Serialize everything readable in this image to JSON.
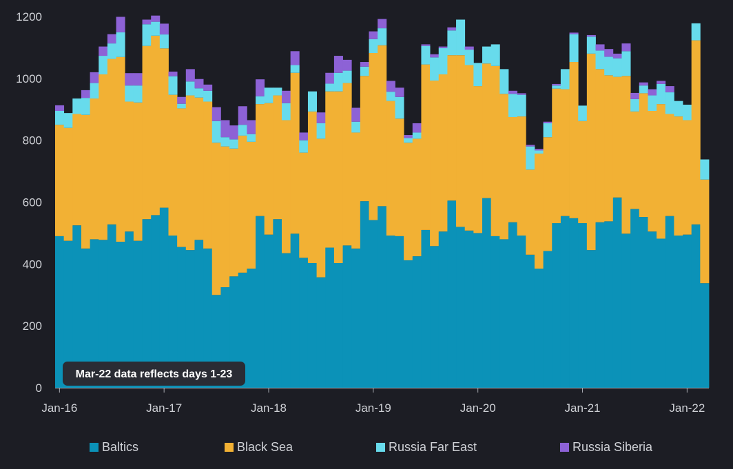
{
  "chart_data": {
    "type": "bar",
    "stacked": true,
    "title": "",
    "xlabel": "",
    "ylabel": "",
    "ylim": [
      0,
      1200
    ],
    "yticks": [
      0,
      200,
      400,
      600,
      800,
      1000,
      1200
    ],
    "xtick_labels": [
      "Jan-16",
      "Jan-17",
      "Jan-18",
      "Jan-19",
      "Jan-20",
      "Jan-21",
      "Jan-22"
    ],
    "xtick_indices": [
      0,
      12,
      24,
      36,
      48,
      60,
      72
    ],
    "categories_range": "Jan-16 to Mar-22 (monthly)",
    "legend_position": "bottom",
    "annotation": "Mar-22 data reflects days 1-23",
    "colors": {
      "Baltics": "#0b92b8",
      "Black Sea": "#f2b134",
      "Russia Far East": "#67dbec",
      "Russia Siberia": "#8d62d6"
    },
    "series": [
      {
        "name": "Baltics",
        "values": [
          490,
          475,
          525,
          450,
          480,
          478,
          528,
          472,
          505,
          475,
          545,
          558,
          582,
          492,
          455,
          445,
          478,
          450,
          300,
          325,
          360,
          372,
          385,
          555,
          495,
          545,
          435,
          498,
          420,
          403,
          357,
          453,
          403,
          460,
          450,
          603,
          542,
          587,
          492,
          490,
          412,
          425,
          510,
          458,
          505,
          605,
          520,
          508,
          500,
          613,
          490,
          480,
          535,
          492,
          430,
          385,
          442,
          532,
          555,
          548,
          532,
          445,
          535,
          538,
          615,
          498,
          578,
          552,
          505,
          482,
          555,
          492,
          495,
          528,
          338
        ]
      },
      {
        "name": "Black Sea",
        "values": [
          360,
          365,
          360,
          432,
          455,
          535,
          535,
          597,
          420,
          447,
          560,
          580,
          515,
          455,
          448,
          500,
          460,
          475,
          492,
          455,
          413,
          443,
          410,
          362,
          425,
          400,
          430,
          520,
          340,
          490,
          448,
          505,
          555,
          525,
          375,
          405,
          540,
          520,
          435,
          380,
          380,
          380,
          535,
          535,
          508,
          470,
          555,
          535,
          475,
          435,
          550,
          470,
          340,
          385,
          275,
          372,
          368,
          435,
          410,
          505,
          330,
          635,
          495,
          472,
          390,
          510,
          315,
          400,
          390,
          435,
          330,
          385,
          370,
          595,
          335
        ]
      },
      {
        "name": "Russia Far East",
        "values": [
          45,
          48,
          50,
          55,
          50,
          60,
          50,
          80,
          52,
          55,
          70,
          45,
          45,
          60,
          15,
          45,
          30,
          35,
          70,
          30,
          30,
          35,
          25,
          25,
          50,
          25,
          55,
          25,
          40,
          65,
          50,
          25,
          60,
          40,
          35,
          30,
          45,
          55,
          30,
          70,
          15,
          20,
          60,
          75,
          85,
          80,
          115,
          50,
          75,
          55,
          70,
          80,
          75,
          70,
          75,
          10,
          45,
          10,
          65,
          90,
          50,
          55,
          60,
          60,
          60,
          80,
          40,
          25,
          50,
          65,
          70,
          50,
          50,
          55,
          65
        ]
      },
      {
        "name": "Russia Siberia",
        "values": [
          18,
          0,
          0,
          25,
          35,
          30,
          30,
          50,
          40,
          40,
          15,
          20,
          35,
          15,
          22,
          40,
          30,
          20,
          45,
          55,
          45,
          60,
          45,
          55,
          0,
          0,
          40,
          45,
          25,
          0,
          35,
          35,
          55,
          35,
          45,
          15,
          25,
          30,
          35,
          30,
          10,
          30,
          5,
          10,
          5,
          10,
          0,
          10,
          0,
          0,
          0,
          0,
          10,
          5,
          5,
          5,
          5,
          5,
          0,
          5,
          0,
          5,
          20,
          25,
          15,
          25,
          20,
          10,
          20,
          10,
          20,
          0,
          0,
          0,
          0
        ]
      }
    ]
  }
}
